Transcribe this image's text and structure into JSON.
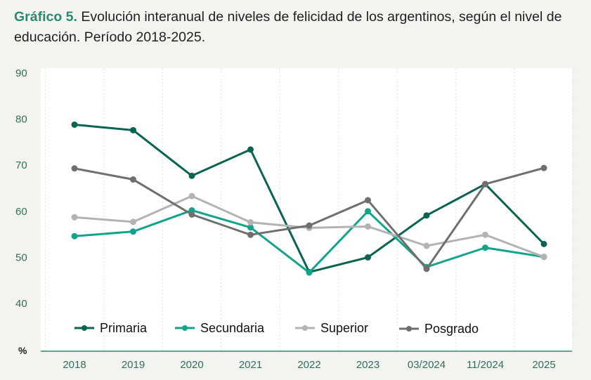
{
  "header": {
    "prefix": "Gráfico 5.",
    "title": "Evolución interanual de niveles de felicidad de los argentinos, según el nivel de educación. Período 2018-2025."
  },
  "chart_data": {
    "type": "line",
    "title": "Gráfico 5. Evolución interanual de niveles de felicidad de los argentinos, según el nivel de educación. Período 2018-2025.",
    "x": [
      "2018",
      "2019",
      "2020",
      "2021",
      "2022",
      "2023",
      "03/2024",
      "11/2024",
      "2025"
    ],
    "ylim": [
      40,
      90
    ],
    "yticks": [
      40,
      50,
      60,
      70,
      80,
      90
    ],
    "ylabel": "%",
    "grid": "vertical dotted",
    "legend": "bottom",
    "series": [
      {
        "name": "Primaria",
        "color": "#0b6351",
        "values": [
          78.8,
          77.6,
          67.7,
          73.4,
          46.8,
          50.0,
          59.1,
          65.9,
          52.9
        ]
      },
      {
        "name": "Secundaria",
        "color": "#12a48a",
        "values": [
          54.6,
          55.6,
          60.2,
          56.5,
          46.7,
          60.0,
          47.9,
          52.1,
          50.1
        ]
      },
      {
        "name": "Superior",
        "color": "#b3b3b3",
        "values": [
          58.7,
          57.7,
          63.3,
          57.6,
          56.4,
          56.7,
          52.5,
          54.9,
          50.1
        ]
      },
      {
        "name": "Posgrado",
        "color": "#6f6f6f",
        "values": [
          69.3,
          66.9,
          59.3,
          54.9,
          56.9,
          62.4,
          47.5,
          65.9,
          69.4
        ]
      }
    ]
  }
}
